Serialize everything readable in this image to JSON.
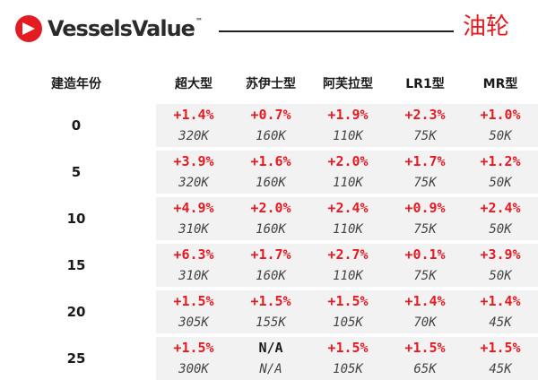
{
  "header": {
    "logo_text": "VesselsValue",
    "logo_tm": "™",
    "title": "油轮"
  },
  "table": {
    "corner_label": "建造年份",
    "columns": [
      "超大型",
      "苏伊士型",
      "阿芙拉型",
      "LR1型",
      "MR型"
    ],
    "rows": [
      {
        "age": "0",
        "changes": [
          "+1.4%",
          "+0.7%",
          "+1.9%",
          "+2.3%",
          "+1.0%"
        ],
        "values": [
          "320K",
          "160K",
          "110K",
          "75K",
          "50K"
        ]
      },
      {
        "age": "5",
        "changes": [
          "+3.9%",
          "+1.6%",
          "+2.0%",
          "+1.7%",
          "+1.2%"
        ],
        "values": [
          "320K",
          "160K",
          "110K",
          "75K",
          "50K"
        ]
      },
      {
        "age": "10",
        "changes": [
          "+4.9%",
          "+2.0%",
          "+2.4%",
          "+0.9%",
          "+2.4%"
        ],
        "values": [
          "310K",
          "160K",
          "110K",
          "75K",
          "50K"
        ]
      },
      {
        "age": "15",
        "changes": [
          "+6.3%",
          "+1.7%",
          "+2.7%",
          "+0.1%",
          "+3.9%"
        ],
        "values": [
          "310K",
          "160K",
          "110K",
          "75K",
          "50K"
        ]
      },
      {
        "age": "20",
        "changes": [
          "+1.5%",
          "+1.5%",
          "+1.5%",
          "+1.4%",
          "+1.4%"
        ],
        "values": [
          "305K",
          "155K",
          "105K",
          "70K",
          "45K"
        ]
      },
      {
        "age": "25",
        "changes": [
          "+1.5%",
          "N/A",
          "+1.5%",
          "+1.5%",
          "+1.5%"
        ],
        "values": [
          "300K",
          "N/A",
          "105K",
          "65K",
          "45K"
        ]
      }
    ]
  },
  "colors": {
    "accent_red": "#e31b23",
    "band_grey": "#f2f2f2",
    "text_dark": "#1a1a1a"
  }
}
